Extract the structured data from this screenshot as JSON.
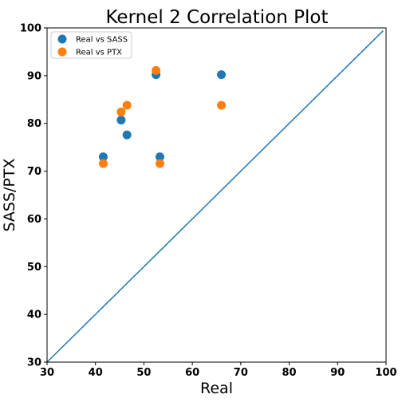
{
  "chart_data": {
    "type": "scatter",
    "title": "Kernel 2 Correlation Plot",
    "xlabel": "Real",
    "ylabel": "SASS/PTX",
    "xlim": [
      30,
      100
    ],
    "ylim": [
      30,
      100
    ],
    "xticks": [
      30,
      40,
      50,
      60,
      70,
      80,
      90,
      100
    ],
    "yticks": [
      30,
      40,
      50,
      60,
      70,
      80,
      90,
      100
    ],
    "grid": false,
    "legend_position": "top-left",
    "reference_line": {
      "x": [
        30,
        99.4
      ],
      "y": [
        30,
        99.4
      ],
      "color": "#1f77b4"
    },
    "series": [
      {
        "name": "Real vs SASS",
        "color": "#1f77b4",
        "points": [
          [
            41.6,
            73.0
          ],
          [
            45.3,
            80.7
          ],
          [
            46.5,
            77.6
          ],
          [
            52.5,
            90.2
          ],
          [
            53.3,
            73.0
          ],
          [
            66.0,
            90.2
          ]
        ]
      },
      {
        "name": "Real vs PTX",
        "color": "#ff7f0e",
        "points": [
          [
            41.6,
            71.6
          ],
          [
            45.3,
            82.4
          ],
          [
            46.5,
            83.8
          ],
          [
            52.5,
            91.1
          ],
          [
            53.3,
            71.6
          ],
          [
            66.0,
            83.8
          ]
        ]
      }
    ]
  }
}
